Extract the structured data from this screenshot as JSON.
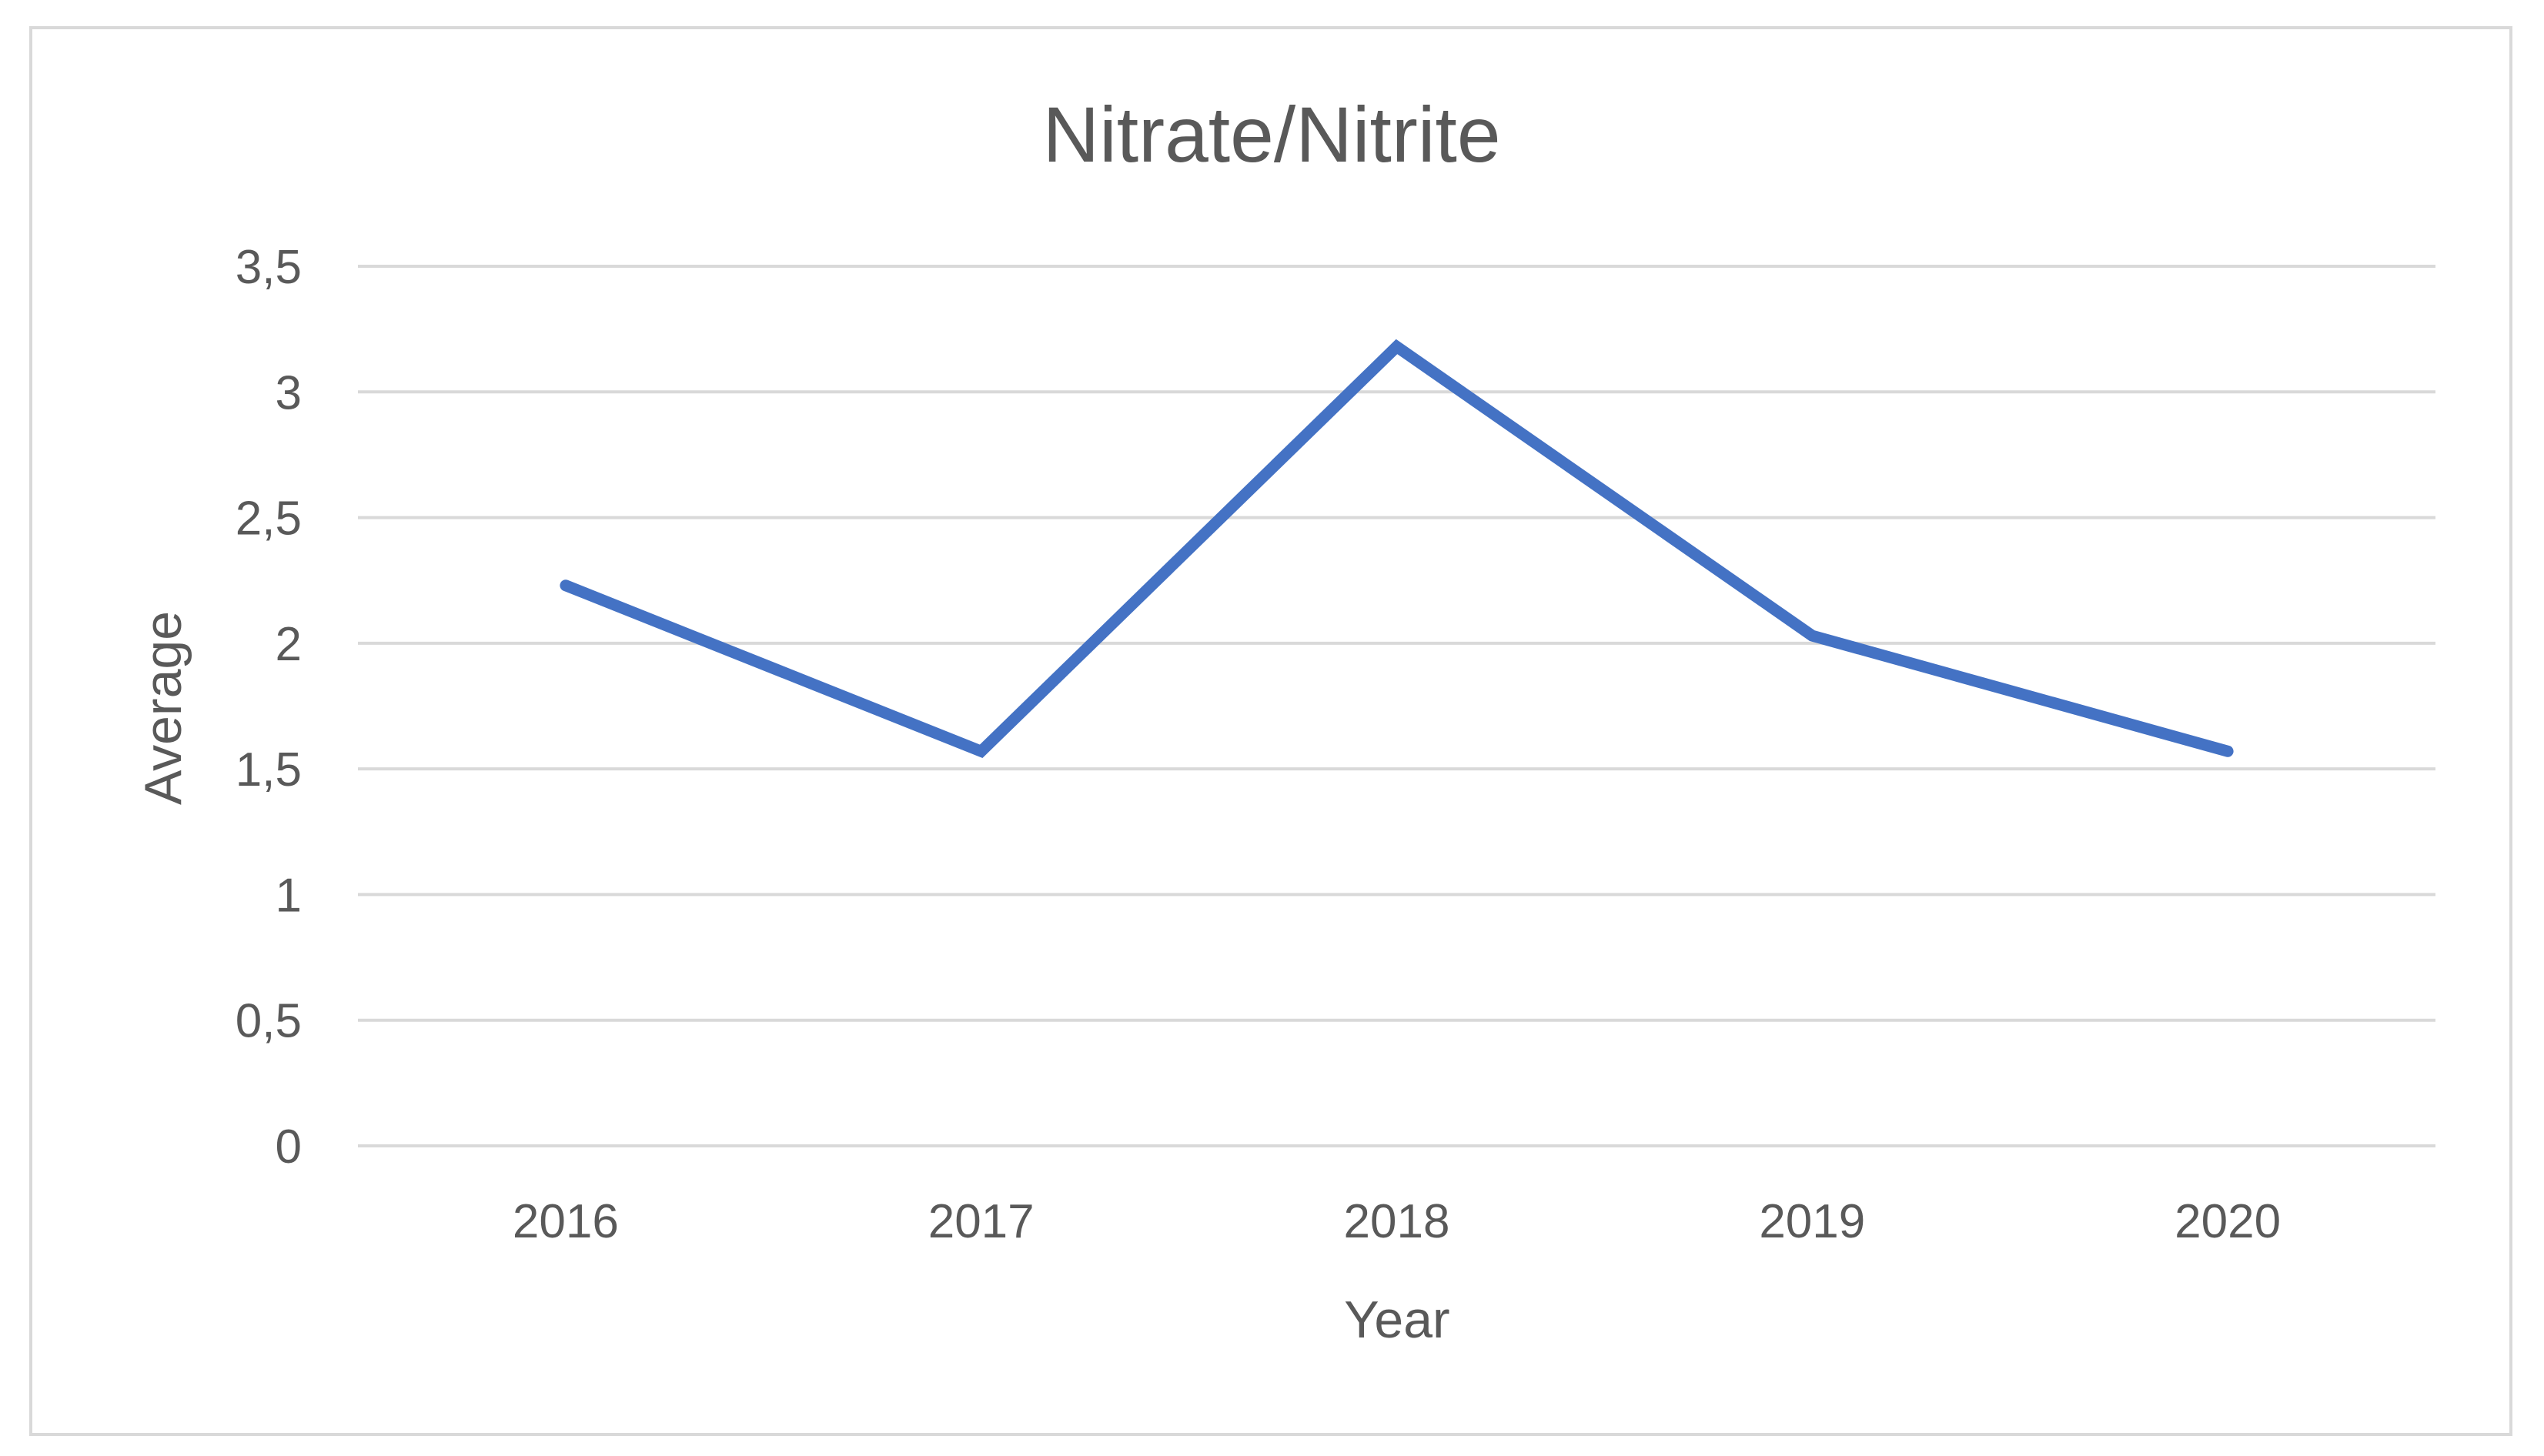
{
  "chart_data": {
    "type": "line",
    "title": "Nitrate/Nitrite",
    "xlabel": "Year",
    "ylabel": "Average",
    "categories": [
      "2016",
      "2017",
      "2018",
      "2019",
      "2020"
    ],
    "series": [
      {
        "values": [
          2.23,
          1.57,
          3.18,
          2.03,
          1.57
        ],
        "color": "#4472c4"
      }
    ],
    "ylim": [
      0,
      3.5
    ],
    "yticks": [
      0,
      0.5,
      1,
      1.5,
      2,
      2.5,
      3,
      3.5
    ],
    "ytick_labels": [
      "0",
      "0,5",
      "1",
      "1,5",
      "2",
      "2,5",
      "3",
      "3,5"
    ],
    "grid": true,
    "legend": "none"
  }
}
